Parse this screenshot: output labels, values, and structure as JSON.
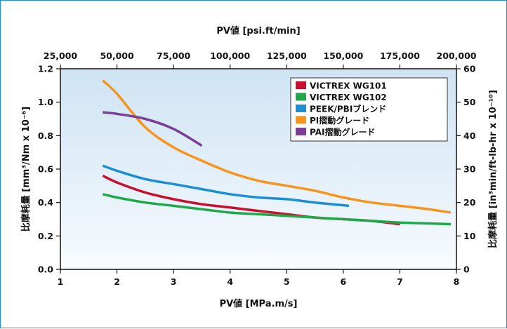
{
  "chart_data": {
    "type": "line",
    "title": "",
    "xlabel": "PV値 [MPa.m/s]",
    "x2label": "PV値 [psi.ft/min]",
    "ylabel": "比摩耗量 [mm³/Nm x 10⁻⁶]",
    "y2label": "比摩耗量 [in³min/ft-lb-hr x 10⁻¹⁰]",
    "xlim": [
      1,
      8
    ],
    "ylim": [
      0,
      1.2
    ],
    "x2lim": [
      25000,
      200000
    ],
    "y2lim": [
      0,
      60
    ],
    "xticks": [
      "1",
      "2",
      "3",
      "4",
      "5",
      "6",
      "7",
      "8"
    ],
    "yticks": [
      "0.0",
      "0.2",
      "0.4",
      "0.6",
      "0.8",
      "1.0",
      "1.2"
    ],
    "x2ticks": [
      "25,000",
      "50,000",
      "75,000",
      "100,000",
      "125,000",
      "150,000",
      "175,000",
      "200,000"
    ],
    "y2ticks": [
      "0",
      "10",
      "20",
      "30",
      "40",
      "50",
      "60"
    ],
    "grid": false,
    "legend_position": "top-right",
    "series": [
      {
        "name": "VICTREX WG101",
        "color": "#c8102e",
        "points": [
          [
            1.75,
            0.56
          ],
          [
            2.0,
            0.52
          ],
          [
            2.5,
            0.46
          ],
          [
            3.0,
            0.42
          ],
          [
            3.5,
            0.39
          ],
          [
            4.0,
            0.37
          ],
          [
            4.5,
            0.35
          ],
          [
            5.0,
            0.33
          ],
          [
            5.5,
            0.31
          ],
          [
            6.0,
            0.3
          ],
          [
            6.5,
            0.29
          ],
          [
            7.0,
            0.27
          ]
        ]
      },
      {
        "name": "VICTREX WG102",
        "color": "#1fa84a",
        "points": [
          [
            1.75,
            0.45
          ],
          [
            2.0,
            0.43
          ],
          [
            2.5,
            0.4
          ],
          [
            3.0,
            0.38
          ],
          [
            3.5,
            0.36
          ],
          [
            4.0,
            0.34
          ],
          [
            4.5,
            0.33
          ],
          [
            5.0,
            0.32
          ],
          [
            5.5,
            0.31
          ],
          [
            6.0,
            0.3
          ],
          [
            6.5,
            0.29
          ],
          [
            7.0,
            0.28
          ],
          [
            7.5,
            0.275
          ],
          [
            7.9,
            0.27
          ]
        ]
      },
      {
        "name": "PEEK/PBIブレンド",
        "color": "#1b8fd2",
        "points": [
          [
            1.75,
            0.62
          ],
          [
            2.0,
            0.59
          ],
          [
            2.5,
            0.54
          ],
          [
            3.0,
            0.51
          ],
          [
            3.5,
            0.48
          ],
          [
            4.0,
            0.45
          ],
          [
            4.5,
            0.43
          ],
          [
            5.0,
            0.42
          ],
          [
            5.5,
            0.4
          ],
          [
            6.1,
            0.38
          ]
        ]
      },
      {
        "name": "PI摺動グレード",
        "color": "#f7941d",
        "points": [
          [
            1.75,
            1.13
          ],
          [
            2.0,
            1.05
          ],
          [
            2.5,
            0.85
          ],
          [
            3.0,
            0.73
          ],
          [
            3.5,
            0.65
          ],
          [
            4.0,
            0.58
          ],
          [
            4.5,
            0.53
          ],
          [
            5.0,
            0.5
          ],
          [
            5.5,
            0.47
          ],
          [
            6.0,
            0.43
          ],
          [
            6.5,
            0.4
          ],
          [
            7.0,
            0.38
          ],
          [
            7.5,
            0.36
          ],
          [
            7.9,
            0.34
          ]
        ]
      },
      {
        "name": "PAI摺動グレード",
        "color": "#7b3f98",
        "points": [
          [
            1.75,
            0.94
          ],
          [
            2.0,
            0.93
          ],
          [
            2.5,
            0.9
          ],
          [
            3.0,
            0.84
          ],
          [
            3.5,
            0.74
          ]
        ]
      }
    ]
  }
}
